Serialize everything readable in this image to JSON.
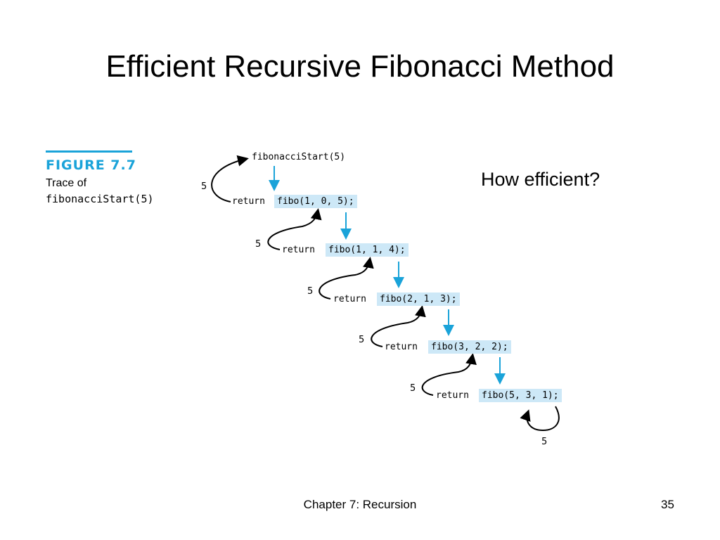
{
  "slide": {
    "title": "Efficient Recursive Fibonacci Method",
    "question": "How efficient?",
    "footer": "Chapter 7: Recursion",
    "page_number": "35"
  },
  "figure": {
    "label": "FIGURE 7.7",
    "caption_line1": "Trace of",
    "caption_code": "fibonacciStart(5)",
    "start_call": "fibonacciStart(5)",
    "return_keyword": "return",
    "calls": [
      "fibo(1, 0, 5);",
      "fibo(1, 1, 4);",
      "fibo(2, 1, 3);",
      "fibo(3, 2, 2);",
      "fibo(5, 3, 1);"
    ],
    "returned_values": [
      "5",
      "5",
      "5",
      "5",
      "5",
      "5"
    ],
    "colors": {
      "accent": "#1aa3d9",
      "highlight": "#cde8f7"
    }
  }
}
